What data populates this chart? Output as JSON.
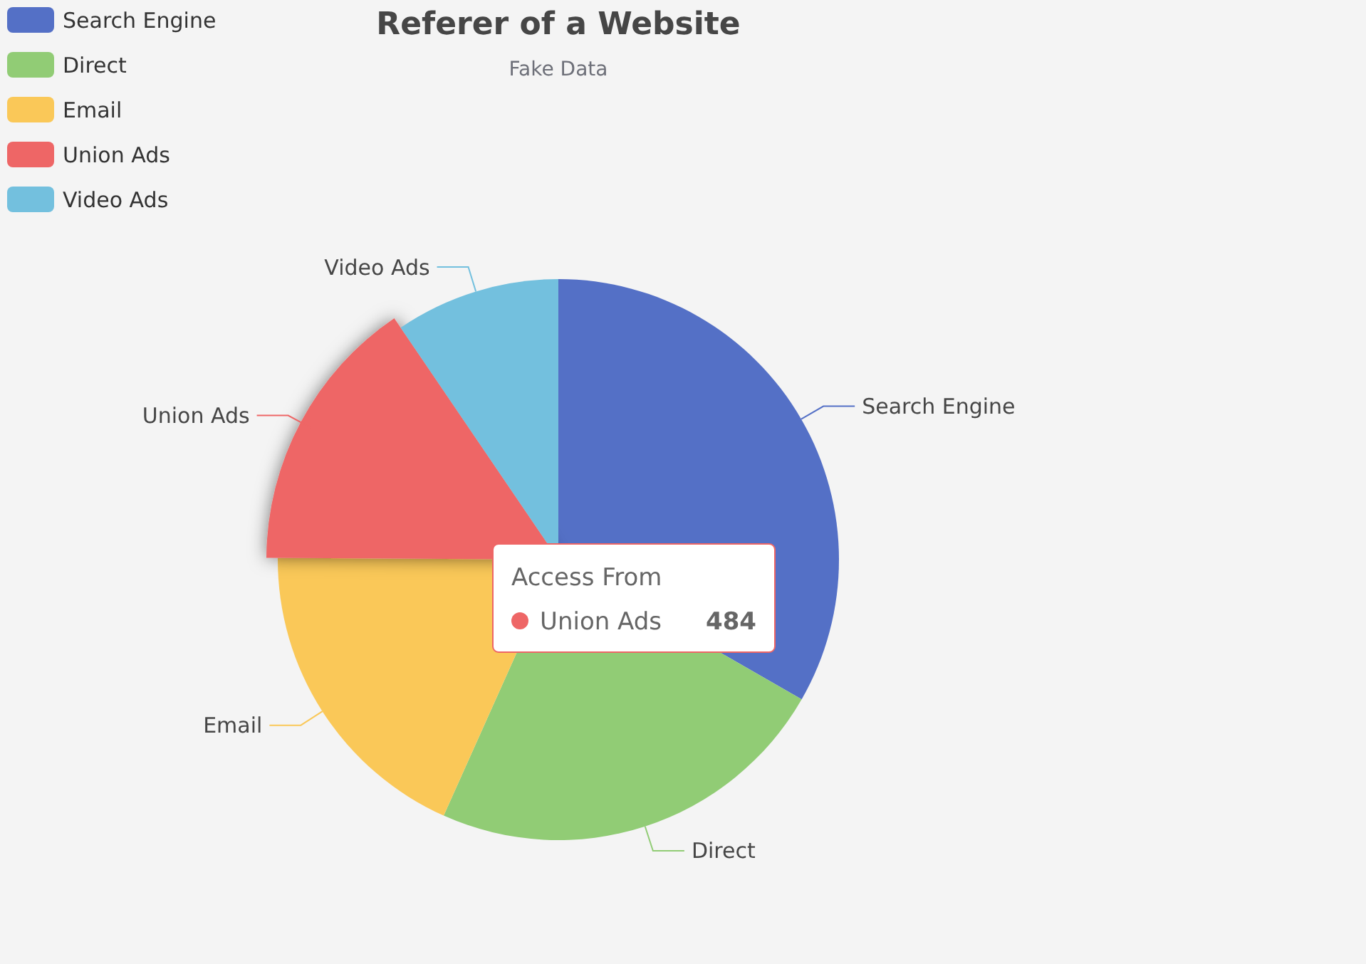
{
  "chart_data": {
    "type": "pie",
    "title": "Referer of a Website",
    "subtitle": "Fake Data",
    "legend": "top left",
    "categories": [
      "Search Engine",
      "Direct",
      "Email",
      "Union Ads",
      "Video Ads"
    ],
    "values": [
      33.3,
      23.4,
      18.4,
      15.4,
      9.5
    ],
    "colors": [
      "#5470c6",
      "#91cc75",
      "#fac858",
      "#ee6666",
      "#73c0de"
    ],
    "annotations": [
      "Access From",
      "Union Ads",
      "484"
    ]
  }
}
